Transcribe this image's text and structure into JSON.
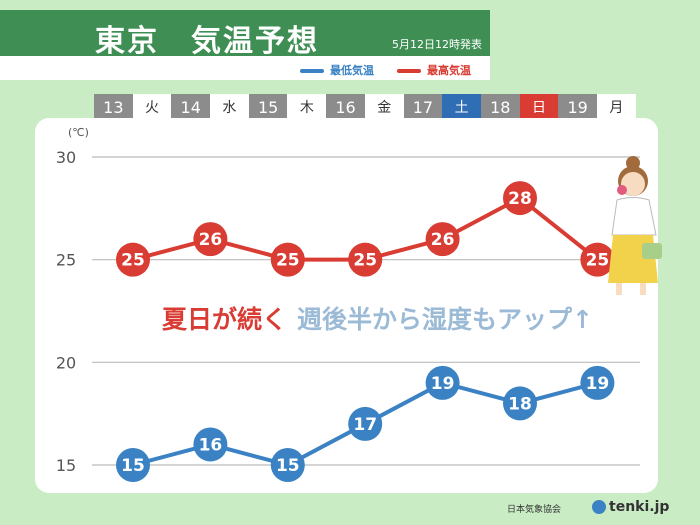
{
  "header": {
    "title": "東京　気温予想",
    "issued": "5月12日12時発表",
    "legend_min": "最低気温",
    "legend_max": "最高気温"
  },
  "days": [
    {
      "date": "13",
      "dow": "火",
      "type": "weekday"
    },
    {
      "date": "14",
      "dow": "水",
      "type": "weekday"
    },
    {
      "date": "15",
      "dow": "木",
      "type": "weekday"
    },
    {
      "date": "16",
      "dow": "金",
      "type": "weekday"
    },
    {
      "date": "17",
      "dow": "土",
      "type": "sat"
    },
    {
      "date": "18",
      "dow": "日",
      "type": "sun"
    },
    {
      "date": "19",
      "dow": "月",
      "type": "weekday"
    }
  ],
  "message": {
    "red": "夏日が続く",
    "blue": "週後半から湿度もアップ↑"
  },
  "footer": {
    "credit": "日本気象協会",
    "brand": "tenki.jp"
  },
  "colors": {
    "max": "#d83c33",
    "min": "#3a82c4",
    "grid": "#bbbbbb",
    "accent": "#3f8f55"
  },
  "chart_data": {
    "type": "line",
    "categories": [
      "13",
      "14",
      "15",
      "16",
      "17",
      "18",
      "19"
    ],
    "unit": "(℃)",
    "yticks": [
      15,
      20,
      25,
      30
    ],
    "ylim": [
      15,
      30
    ],
    "grid": true,
    "series": [
      {
        "name": "最高気温",
        "key": "max",
        "values": [
          25,
          26,
          25,
          25,
          26,
          28,
          25
        ]
      },
      {
        "name": "最低気温",
        "key": "min",
        "values": [
          15,
          16,
          15,
          17,
          19,
          18,
          19
        ]
      }
    ]
  }
}
